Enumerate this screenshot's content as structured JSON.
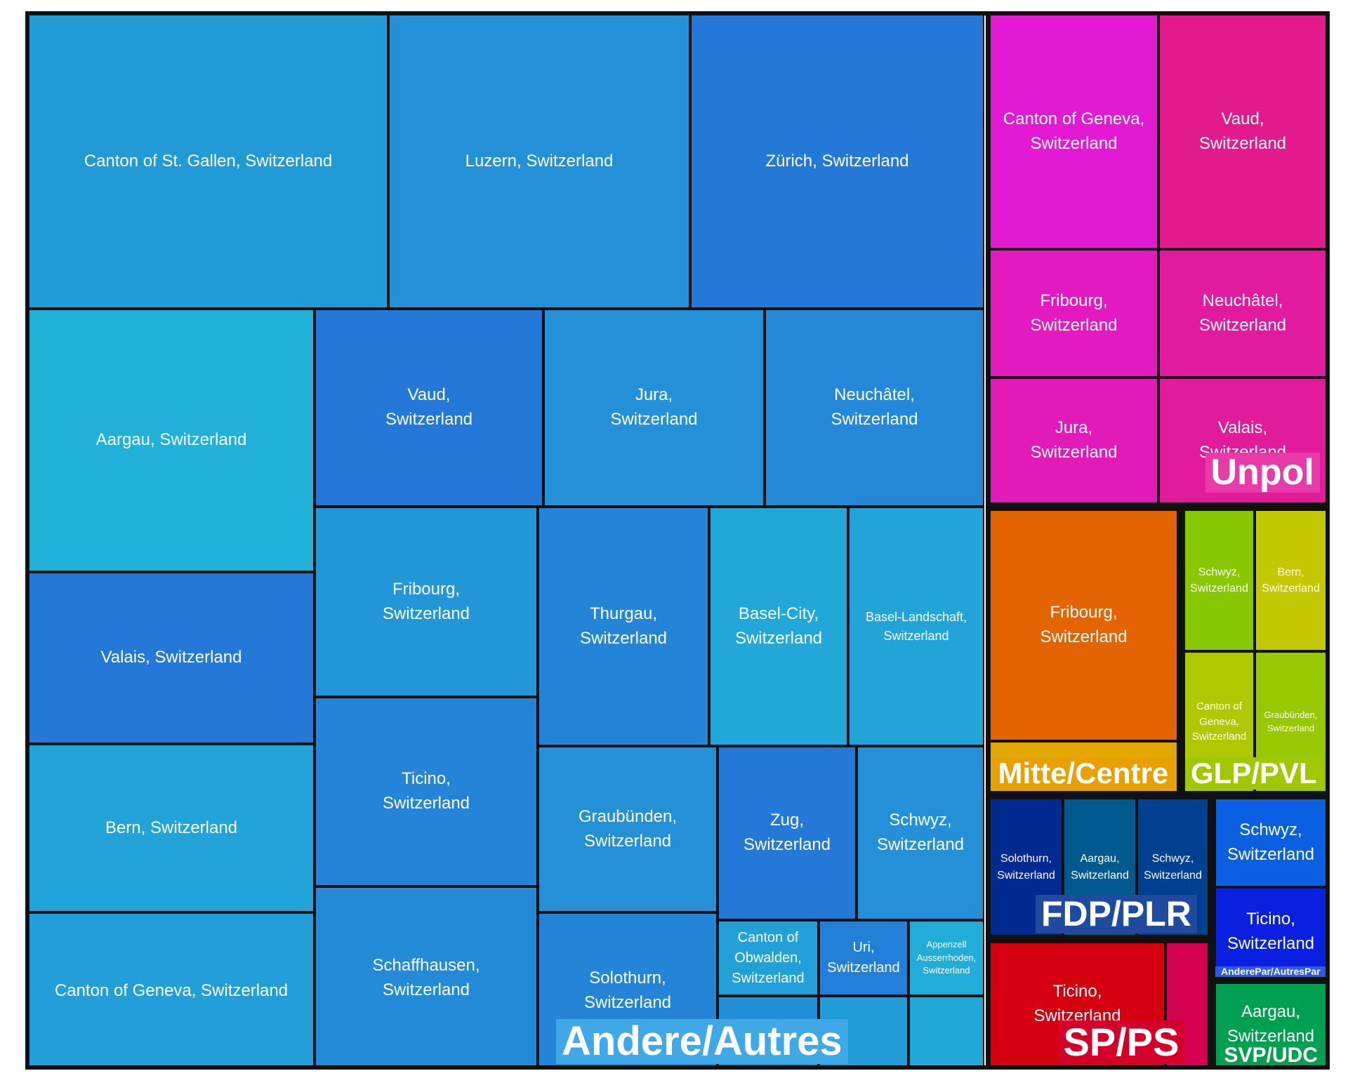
{
  "chart_data": {
    "type": "treemap",
    "title": "",
    "groups": [
      {
        "name": "Andere/Autres",
        "color": "#2b9be0",
        "label_color": "#3fa9e8",
        "tiles": [
          {
            "label": "Canton of St. Gallen, Switzerland",
            "color": "#229ad6"
          },
          {
            "label": "Luzern, Switzerland",
            "color": "#2390d8"
          },
          {
            "label": "Zürich, Switzerland",
            "color": "#2479d8"
          },
          {
            "label": "Aargau, Switzerland",
            "color": "#20b0d8"
          },
          {
            "label": "Valais, Switzerland",
            "color": "#2478d8"
          },
          {
            "label": "Bern, Switzerland",
            "color": "#22a4d8"
          },
          {
            "label": "Canton of Geneva, Switzerland",
            "color": "#229fd8"
          },
          {
            "label": "Vaud, Switzerland",
            "color": "#2378d8"
          },
          {
            "label": "Jura, Switzerland",
            "color": "#2390d8"
          },
          {
            "label": "Neuchâtel, Switzerland",
            "color": "#2388d8"
          },
          {
            "label": "Fribourg, Switzerland",
            "color": "#2396d8"
          },
          {
            "label": "Ticino, Switzerland",
            "color": "#2384d8"
          },
          {
            "label": "Schaffhausen, Switzerland",
            "color": "#238ad8"
          },
          {
            "label": "Thurgau, Switzerland",
            "color": "#2384d8"
          },
          {
            "label": "Basel-City, Switzerland",
            "color": "#22a8d8"
          },
          {
            "label": "Basel-Landschaft, Switzerland",
            "color": "#22a4d8"
          },
          {
            "label": "Graubünden, Switzerland",
            "color": "#2390d8"
          },
          {
            "label": "Solothurn, Switzerland",
            "color": "#2384d8"
          },
          {
            "label": "Zug, Switzerland",
            "color": "#2378d8"
          },
          {
            "label": "Schwyz, Switzerland",
            "color": "#2390d8"
          },
          {
            "label": "Canton of Obwalden, Switzerland",
            "color": "#22a0d8"
          },
          {
            "label": "Uri, Switzerland",
            "color": "#2380d8"
          },
          {
            "label": "Appenzell Ausserrhoden, Switzerland",
            "color": "#22acd8"
          },
          {
            "label": "",
            "color": "#2290d8"
          },
          {
            "label": "",
            "color": "#229cd8"
          },
          {
            "label": "",
            "color": "#22a8d8"
          }
        ]
      },
      {
        "name": "Unpol",
        "color": "#e31ab0",
        "label_color": "#e83aa8",
        "tiles": [
          {
            "label": "Canton of Geneva, Switzerland",
            "color": "#e21ad4"
          },
          {
            "label": "Vaud, Switzerland",
            "color": "#e21a8c"
          },
          {
            "label": "Fribourg, Switzerland",
            "color": "#e21ac0"
          },
          {
            "label": "Neuchâtel, Switzerland",
            "color": "#e21aa0"
          },
          {
            "label": "Jura, Switzerland",
            "color": "#e21ab8"
          },
          {
            "label": "Valais, Switzerland",
            "color": "#e21a9c"
          }
        ]
      },
      {
        "name": "Mitte/Centre",
        "color": "#e36400",
        "label_color": "#e8a000",
        "tiles": [
          {
            "label": "Fribourg, Switzerland",
            "color": "#e36400"
          },
          {
            "label": "",
            "color": "#e3a800"
          }
        ]
      },
      {
        "name": "GLP/PVL",
        "color": "#a8c800",
        "label_color": "#a0c800",
        "tiles": [
          {
            "label": "Schwyz, Switzerland",
            "color": "#88c800"
          },
          {
            "label": "Bern, Switzerland",
            "color": "#c4c800"
          },
          {
            "label": "Canton of Geneva, Switzerland",
            "color": "#b0c800"
          },
          {
            "label": "Graubünden, Switzerland",
            "color": "#98c800"
          }
        ]
      },
      {
        "name": "FDP/PLR",
        "color": "#004090",
        "label_color": "#1e4aa0",
        "tiles": [
          {
            "label": "Solothurn, Switzerland",
            "color": "#002a90"
          },
          {
            "label": "Aargau, Switzerland",
            "color": "#005a90"
          },
          {
            "label": "Schwyz, Switzerland",
            "color": "#004090"
          }
        ]
      },
      {
        "name": "AnderePar/AutresPar",
        "color": "#0a40e0",
        "label_color": "#2a5ae8",
        "tiles": [
          {
            "label": "Schwyz, Switzerland",
            "color": "#0a60e0"
          },
          {
            "label": "Ticino, Switzerland",
            "color": "#0a20e0"
          }
        ]
      },
      {
        "name": "SP/PS",
        "color": "#d4002a",
        "label_color": "#d4002a",
        "tiles": [
          {
            "label": "Ticino, Switzerland",
            "color": "#d40010"
          },
          {
            "label": "",
            "color": "#d40050"
          }
        ]
      },
      {
        "name": "SVP/UDC",
        "color": "#00a050",
        "label_color": "#00a050",
        "tiles": [
          {
            "label": "Aargau, Switzerland",
            "color": "#00a050"
          }
        ]
      }
    ]
  }
}
